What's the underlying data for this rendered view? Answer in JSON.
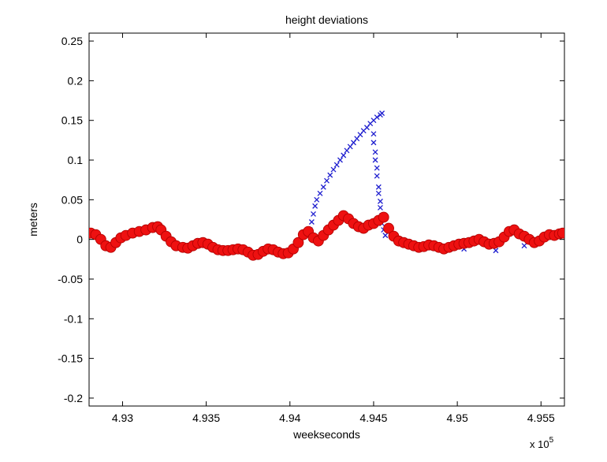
{
  "chart_data": {
    "type": "scatter",
    "title": "height deviations",
    "xlabel": "weekseconds",
    "ylabel": "meters",
    "x_exponent_label": "x 10",
    "x_exponent_power": "5",
    "xlim": [
      4.928,
      4.9564
    ],
    "ylim": [
      -0.21,
      0.26
    ],
    "x_ticks": [
      4.93,
      4.935,
      4.94,
      4.945,
      4.95,
      4.955
    ],
    "x_tick_labels": [
      "4.93",
      "4.935",
      "4.94",
      "4.945",
      "4.95",
      "4.955"
    ],
    "y_ticks": [
      -0.2,
      -0.15,
      -0.1,
      -0.05,
      0,
      0.05,
      0.1,
      0.15,
      0.2,
      0.25
    ],
    "y_tick_labels": [
      "-0.2",
      "-0.15",
      "-0.1",
      "-0.05",
      "0",
      "0.05",
      "0.1",
      "0.15",
      "0.2",
      "0.25"
    ],
    "grid": false,
    "series": [
      {
        "marker": "x",
        "color": "#1f1fcf",
        "points": [
          [
            4.9412,
            0.012
          ],
          [
            4.9413,
            0.022
          ],
          [
            4.9414,
            0.032
          ],
          [
            4.9415,
            0.042
          ],
          [
            4.9416,
            0.05
          ],
          [
            4.9418,
            0.058
          ],
          [
            4.942,
            0.066
          ],
          [
            4.9422,
            0.074
          ],
          [
            4.9424,
            0.081
          ],
          [
            4.9426,
            0.088
          ],
          [
            4.9428,
            0.094
          ],
          [
            4.943,
            0.1
          ],
          [
            4.9432,
            0.106
          ],
          [
            4.9434,
            0.112
          ],
          [
            4.9436,
            0.117
          ],
          [
            4.9438,
            0.122
          ],
          [
            4.944,
            0.127
          ],
          [
            4.9442,
            0.132
          ],
          [
            4.9444,
            0.137
          ],
          [
            4.9446,
            0.141
          ],
          [
            4.9448,
            0.146
          ],
          [
            4.945,
            0.15
          ],
          [
            4.9452,
            0.154
          ],
          [
            4.9454,
            0.157
          ],
          [
            4.9455,
            0.159
          ],
          [
            4.945,
            0.133
          ],
          [
            4.945,
            0.122
          ],
          [
            4.9451,
            0.11
          ],
          [
            4.9451,
            0.1
          ],
          [
            4.9452,
            0.09
          ],
          [
            4.9452,
            0.08
          ],
          [
            4.9453,
            0.066
          ],
          [
            4.9453,
            0.058
          ],
          [
            4.9454,
            0.048
          ],
          [
            4.9454,
            0.04
          ],
          [
            4.9455,
            0.03
          ],
          [
            4.9455,
            0.02
          ],
          [
            4.9456,
            0.012
          ],
          [
            4.9457,
            0.005
          ],
          [
            4.9504,
            -0.012
          ],
          [
            4.9523,
            -0.014
          ],
          [
            4.954,
            -0.008
          ],
          [
            4.929,
            -0.008
          ],
          [
            4.9356,
            -0.013
          ]
        ]
      },
      {
        "marker": "o",
        "color": "#ee1111",
        "points": [
          [
            4.9281,
            0.008
          ],
          [
            4.9284,
            0.006
          ],
          [
            4.9287,
            0.0
          ],
          [
            4.929,
            -0.008
          ],
          [
            4.9293,
            -0.01
          ],
          [
            4.9296,
            -0.004
          ],
          [
            4.9299,
            0.002
          ],
          [
            4.9302,
            0.005
          ],
          [
            4.9306,
            0.008
          ],
          [
            4.931,
            0.01
          ],
          [
            4.9314,
            0.012
          ],
          [
            4.9318,
            0.015
          ],
          [
            4.9321,
            0.016
          ],
          [
            4.9323,
            0.012
          ],
          [
            4.9326,
            0.004
          ],
          [
            4.9329,
            -0.003
          ],
          [
            4.9332,
            -0.008
          ],
          [
            4.9336,
            -0.01
          ],
          [
            4.9339,
            -0.011
          ],
          [
            4.9342,
            -0.008
          ],
          [
            4.9345,
            -0.005
          ],
          [
            4.9348,
            -0.004
          ],
          [
            4.9351,
            -0.006
          ],
          [
            4.9354,
            -0.01
          ],
          [
            4.9357,
            -0.013
          ],
          [
            4.936,
            -0.014
          ],
          [
            4.9363,
            -0.014
          ],
          [
            4.9366,
            -0.013
          ],
          [
            4.9369,
            -0.012
          ],
          [
            4.9372,
            -0.013
          ],
          [
            4.9375,
            -0.016
          ],
          [
            4.9378,
            -0.02
          ],
          [
            4.9381,
            -0.019
          ],
          [
            4.9384,
            -0.015
          ],
          [
            4.9387,
            -0.012
          ],
          [
            4.939,
            -0.013
          ],
          [
            4.9393,
            -0.016
          ],
          [
            4.9396,
            -0.018
          ],
          [
            4.9399,
            -0.017
          ],
          [
            4.9402,
            -0.012
          ],
          [
            4.9405,
            -0.004
          ],
          [
            4.9408,
            0.006
          ],
          [
            4.9411,
            0.01
          ],
          [
            4.9414,
            0.002
          ],
          [
            4.9417,
            -0.002
          ],
          [
            4.942,
            0.005
          ],
          [
            4.9423,
            0.012
          ],
          [
            4.9426,
            0.018
          ],
          [
            4.9429,
            0.024
          ],
          [
            4.9432,
            0.03
          ],
          [
            4.9435,
            0.026
          ],
          [
            4.9438,
            0.02
          ],
          [
            4.9441,
            0.016
          ],
          [
            4.9444,
            0.014
          ],
          [
            4.9447,
            0.018
          ],
          [
            4.945,
            0.02
          ],
          [
            4.9453,
            0.024
          ],
          [
            4.9456,
            0.028
          ],
          [
            4.9459,
            0.014
          ],
          [
            4.9462,
            0.004
          ],
          [
            4.9465,
            -0.002
          ],
          [
            4.9468,
            -0.004
          ],
          [
            4.9471,
            -0.006
          ],
          [
            4.9474,
            -0.008
          ],
          [
            4.9477,
            -0.01
          ],
          [
            4.948,
            -0.009
          ],
          [
            4.9483,
            -0.007
          ],
          [
            4.9486,
            -0.008
          ],
          [
            4.9489,
            -0.01
          ],
          [
            4.9492,
            -0.012
          ],
          [
            4.9495,
            -0.01
          ],
          [
            4.9498,
            -0.008
          ],
          [
            4.9501,
            -0.006
          ],
          [
            4.9504,
            -0.005
          ],
          [
            4.9507,
            -0.004
          ],
          [
            4.951,
            -0.002
          ],
          [
            4.9513,
            0.0
          ],
          [
            4.9516,
            -0.003
          ],
          [
            4.9519,
            -0.006
          ],
          [
            4.9522,
            -0.005
          ],
          [
            4.9525,
            -0.003
          ],
          [
            4.9528,
            0.003
          ],
          [
            4.9531,
            0.01
          ],
          [
            4.9534,
            0.012
          ],
          [
            4.9537,
            0.007
          ],
          [
            4.954,
            0.004
          ],
          [
            4.9543,
            0.0
          ],
          [
            4.9546,
            -0.004
          ],
          [
            4.9549,
            -0.002
          ],
          [
            4.9552,
            0.003
          ],
          [
            4.9555,
            0.006
          ],
          [
            4.9558,
            0.005
          ],
          [
            4.9561,
            0.007
          ],
          [
            4.9563,
            0.008
          ]
        ]
      }
    ]
  }
}
